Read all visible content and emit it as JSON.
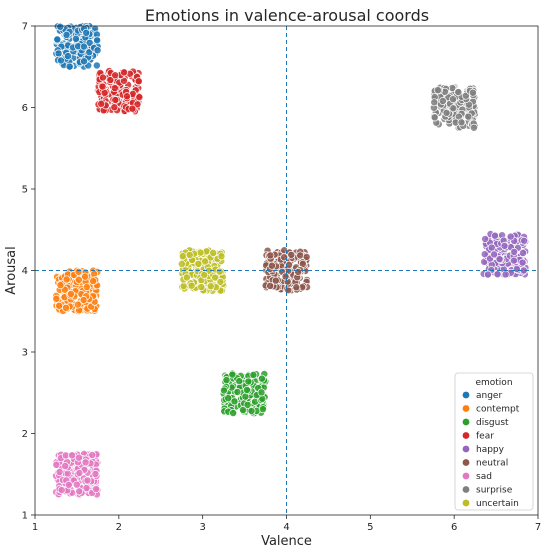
{
  "chart_data": {
    "type": "scatter",
    "title": "Emotions in valence-arousal coords",
    "xlabel": "Valence",
    "ylabel": "Arousal",
    "xlim": [
      1,
      7
    ],
    "ylim": [
      1,
      7
    ],
    "xticks": [
      "1",
      "2",
      "3",
      "4",
      "5",
      "6",
      "7"
    ],
    "yticks": [
      "1",
      "2",
      "3",
      "4",
      "5",
      "6",
      "7"
    ],
    "grid": false,
    "reference_lines": {
      "x": 4,
      "y": 4,
      "style": "dashed",
      "color": "#1f77b4"
    },
    "legend": {
      "title": "emotion",
      "placement": "lower-right"
    },
    "series": [
      {
        "name": "anger",
        "color": "#1f77b4",
        "center": [
          1.5,
          6.75
        ],
        "half_width": 0.25,
        "half_height": 0.25
      },
      {
        "name": "contempt",
        "color": "#ff7f0e",
        "center": [
          1.5,
          3.75
        ],
        "half_width": 0.25,
        "half_height": 0.25
      },
      {
        "name": "disgust",
        "color": "#2ca02c",
        "center": [
          3.5,
          2.5
        ],
        "half_width": 0.25,
        "half_height": 0.25
      },
      {
        "name": "fear",
        "color": "#d62728",
        "center": [
          2.0,
          6.2
        ],
        "half_width": 0.25,
        "half_height": 0.25
      },
      {
        "name": "happy",
        "color": "#9467bd",
        "center": [
          6.6,
          4.2
        ],
        "half_width": 0.25,
        "half_height": 0.25
      },
      {
        "name": "neutral",
        "color": "#8c564b",
        "center": [
          4.0,
          4.0
        ],
        "half_width": 0.25,
        "half_height": 0.25
      },
      {
        "name": "sad",
        "color": "#e377c2",
        "center": [
          1.5,
          1.5
        ],
        "half_width": 0.25,
        "half_height": 0.25
      },
      {
        "name": "surprise",
        "color": "#7f7f7f",
        "center": [
          6.0,
          6.0
        ],
        "half_width": 0.25,
        "half_height": 0.25
      },
      {
        "name": "uncertain",
        "color": "#bcbd22",
        "center": [
          3.0,
          4.0
        ],
        "half_width": 0.25,
        "half_height": 0.25
      }
    ]
  }
}
